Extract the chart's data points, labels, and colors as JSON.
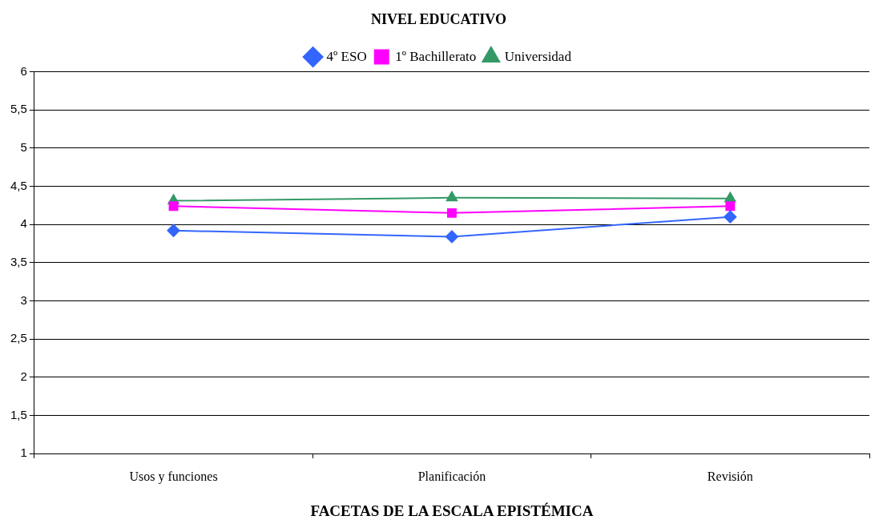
{
  "chart_data": {
    "type": "line",
    "title": "NIVEL EDUCATIVO",
    "xlabel": "FACETAS DE LA ESCALA EPISTÉMICA",
    "categories": [
      "Usos y funciones",
      "Planificación",
      "Revisión"
    ],
    "series": [
      {
        "name": "4º ESO",
        "color": "#3366ff",
        "marker": "diamond",
        "values": [
          3.92,
          3.84,
          4.1
        ]
      },
      {
        "name": "1º Bachillerato",
        "color": "#ff00ff",
        "marker": "square",
        "values": [
          4.24,
          4.15,
          4.24
        ]
      },
      {
        "name": "Universidad",
        "color": "#339966",
        "marker": "triangle",
        "values": [
          4.31,
          4.35,
          4.34
        ]
      }
    ],
    "ylim": [
      1,
      6
    ],
    "yticks": [
      1,
      {
        "value": 1.5,
        "label": "1,5"
      },
      2,
      {
        "value": 2.5,
        "label": "2,5"
      },
      3,
      {
        "value": 3.5,
        "label": "3,5"
      },
      4,
      {
        "value": 4.5,
        "label": "4,5"
      },
      5,
      {
        "value": 5.5,
        "label": "5,5"
      },
      6
    ],
    "grid": "y",
    "legend": "top",
    "line_style": "solid"
  }
}
